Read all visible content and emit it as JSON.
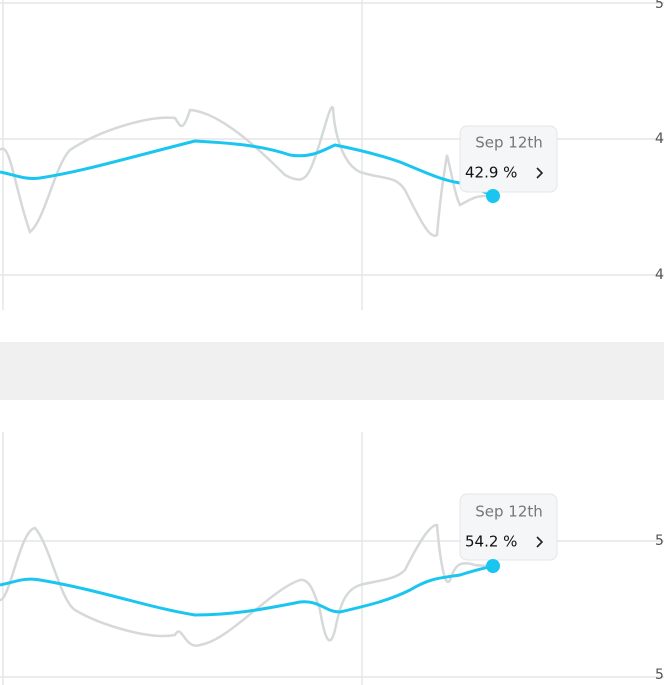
{
  "top_chart": {
    "axis_labels": [
      "5",
      "4",
      "4"
    ],
    "tooltip": {
      "date": "Sep 12th",
      "value": "42.9 %"
    }
  },
  "bottom_chart": {
    "axis_labels": [
      "5",
      "5"
    ],
    "tooltip": {
      "date": "Sep 12th",
      "value": "54.2 %"
    }
  }
}
